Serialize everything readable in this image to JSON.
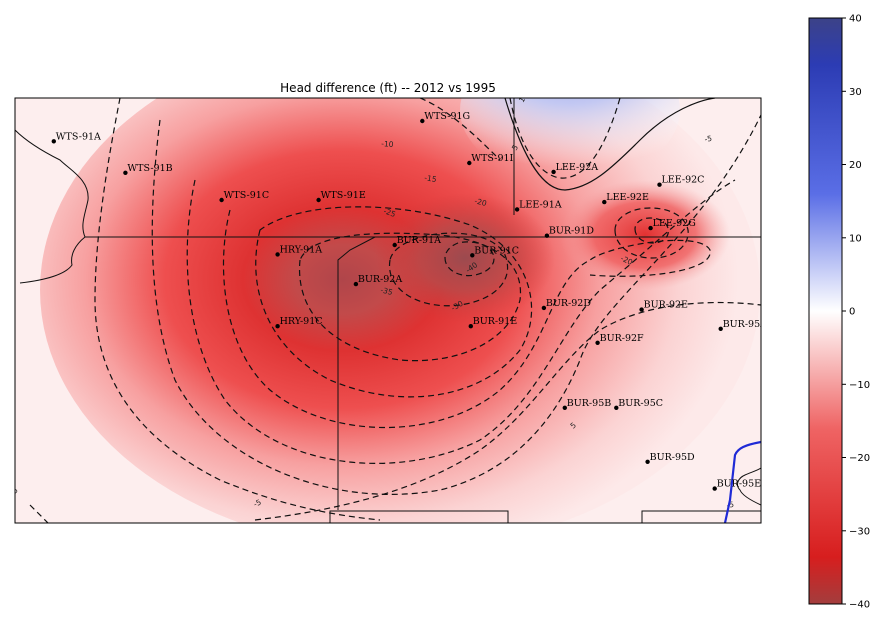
{
  "chart_data": {
    "type": "heatmap",
    "title": "Head difference (ft) -- 2012 vs 1995",
    "xlabel": "",
    "ylabel": "",
    "colorbar": {
      "range": [
        -40,
        40
      ],
      "ticks": [
        40,
        30,
        20,
        10,
        0,
        -10,
        -20,
        -30,
        -40
      ],
      "tick_labels": [
        "40",
        "30",
        "20",
        "10",
        "0",
        "−10",
        "−20",
        "−30",
        "−40"
      ],
      "colors": {
        "high": "#2b3a9c",
        "zero": "#ffffff",
        "low": "#d91b1b",
        "lowest": "#b52a2a"
      }
    },
    "contour_line_labels": [
      "-5",
      "-10",
      "-15",
      "-20",
      "-25",
      "-30",
      "-35",
      "-40",
      "-20",
      "-5",
      "5",
      "5",
      "-5",
      "5",
      "10"
    ],
    "wells": [
      {
        "name": "WTS-91A",
        "x": 0.052,
        "y": 0.102
      },
      {
        "name": "WTS-91B",
        "x": 0.148,
        "y": 0.176
      },
      {
        "name": "WTS-91G",
        "x": 0.546,
        "y": 0.054
      },
      {
        "name": "WTS-91I",
        "x": 0.609,
        "y": 0.153
      },
      {
        "name": "LEE-92A",
        "x": 0.722,
        "y": 0.174
      },
      {
        "name": "LEE-92C",
        "x": 0.864,
        "y": 0.204
      },
      {
        "name": "WTS-91C",
        "x": 0.277,
        "y": 0.24
      },
      {
        "name": "WTS-91E",
        "x": 0.407,
        "y": 0.24
      },
      {
        "name": "LEE-91A",
        "x": 0.673,
        "y": 0.262
      },
      {
        "name": "LEE-92E",
        "x": 0.79,
        "y": 0.245
      },
      {
        "name": "LEE-92G",
        "x": 0.852,
        "y": 0.306
      },
      {
        "name": "BUR-91D",
        "x": 0.713,
        "y": 0.324
      },
      {
        "name": "BUR-91A",
        "x": 0.509,
        "y": 0.346
      },
      {
        "name": "HRY-91A",
        "x": 0.352,
        "y": 0.368
      },
      {
        "name": "BUR-91C",
        "x": 0.613,
        "y": 0.37
      },
      {
        "name": "BUR-92A",
        "x": 0.457,
        "y": 0.438
      },
      {
        "name": "BUR-92D",
        "x": 0.709,
        "y": 0.494
      },
      {
        "name": "BUR-92E",
        "x": 0.84,
        "y": 0.498
      },
      {
        "name": "HRY-91C",
        "x": 0.352,
        "y": 0.537
      },
      {
        "name": "BUR-91E",
        "x": 0.611,
        "y": 0.537
      },
      {
        "name": "BUR-95A",
        "x": 0.946,
        "y": 0.543
      },
      {
        "name": "BUR-92F",
        "x": 0.781,
        "y": 0.576
      },
      {
        "name": "BUR-95B",
        "x": 0.737,
        "y": 0.729
      },
      {
        "name": "BUR-95C",
        "x": 0.806,
        "y": 0.729
      },
      {
        "name": "BUR-95D",
        "x": 0.848,
        "y": 0.856
      },
      {
        "name": "BUR-95E",
        "x": 0.938,
        "y": 0.919
      }
    ]
  }
}
